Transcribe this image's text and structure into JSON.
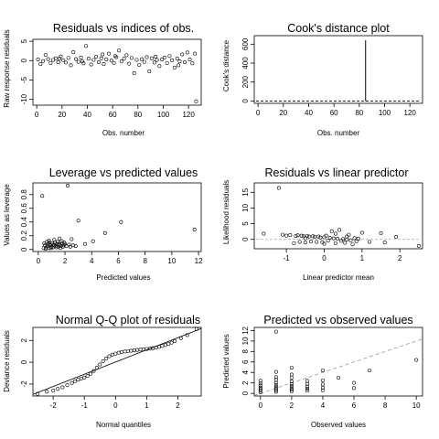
{
  "chart_data": [
    {
      "type": "scatter",
      "title": "Residuals vs indices of obs.",
      "xlabel": "Obs. number",
      "ylabel": "Raw response residuals",
      "xlim": [
        -3,
        130
      ],
      "ylim": [
        -11.5,
        5.5
      ],
      "xticks": [
        0,
        20,
        40,
        60,
        80,
        100,
        120
      ],
      "yticks": [
        -10,
        -5,
        0,
        5
      ],
      "points": [
        [
          1,
          0.3
        ],
        [
          3,
          -0.9
        ],
        [
          5,
          -0.1
        ],
        [
          7,
          1.5
        ],
        [
          9,
          0.4
        ],
        [
          11,
          -0.6
        ],
        [
          13,
          0.2
        ],
        [
          15,
          0.6
        ],
        [
          17,
          -0.4
        ],
        [
          19,
          1.1
        ],
        [
          21,
          0.1
        ],
        [
          23,
          -0.5
        ],
        [
          25,
          0.7
        ],
        [
          27,
          -1.2
        ],
        [
          29,
          2.2
        ],
        [
          31,
          0.4
        ],
        [
          33,
          -0.3
        ],
        [
          35,
          0.8
        ],
        [
          37,
          -0.7
        ],
        [
          39,
          3.8
        ],
        [
          41,
          0.5
        ],
        [
          43,
          -1.0
        ],
        [
          45,
          0.2
        ],
        [
          47,
          1.0
        ],
        [
          49,
          -0.4
        ],
        [
          51,
          0.6
        ],
        [
          53,
          -0.9
        ],
        [
          55,
          0.3
        ],
        [
          57,
          1.8
        ],
        [
          59,
          0.0
        ],
        [
          61,
          -0.6
        ],
        [
          63,
          0.9
        ],
        [
          65,
          2.6
        ],
        [
          67,
          -0.2
        ],
        [
          69,
          0.5
        ],
        [
          71,
          1.4
        ],
        [
          73,
          -0.8
        ],
        [
          75,
          0.7
        ],
        [
          77,
          -3.2
        ],
        [
          79,
          0.2
        ],
        [
          81,
          -1.1
        ],
        [
          83,
          0.4
        ],
        [
          85,
          -0.3
        ],
        [
          87,
          0.9
        ],
        [
          89,
          -2.8
        ],
        [
          91,
          0.6
        ],
        [
          93,
          -0.5
        ],
        [
          95,
          0.2
        ],
        [
          97,
          -1.4
        ],
        [
          99,
          0.3
        ],
        [
          101,
          0.8
        ],
        [
          103,
          -0.6
        ],
        [
          105,
          1.2
        ],
        [
          107,
          0.1
        ],
        [
          109,
          -1.8
        ],
        [
          111,
          0.5
        ],
        [
          113,
          -0.2
        ],
        [
          115,
          1.6
        ],
        [
          117,
          -0.4
        ],
        [
          119,
          2.1
        ],
        [
          121,
          0.3
        ],
        [
          123,
          -0.7
        ],
        [
          125,
          1.8
        ],
        [
          126,
          -10.5
        ],
        [
          18,
          0.5
        ],
        [
          62,
          1.2
        ],
        [
          36,
          -0.2
        ],
        [
          52,
          1.6
        ],
        [
          94,
          1.0
        ],
        [
          112,
          -1.2
        ]
      ]
    },
    {
      "type": "line",
      "title": "Cook's distance plot",
      "xlabel": "Obs. number",
      "ylabel": "Cook's distance",
      "xlim": [
        -3,
        130
      ],
      "ylim": [
        -25,
        690
      ],
      "xticks": [
        0,
        20,
        40,
        60,
        80,
        100,
        120
      ],
      "yticks": [
        0,
        200,
        400,
        600
      ],
      "spike": {
        "x": 85,
        "y": 640
      },
      "hline": 0
    },
    {
      "type": "scatter",
      "title": "Leverage vs predicted values",
      "xlabel": "Predicted values",
      "ylabel": "Values as leverage",
      "xlim": [
        -0.4,
        12.2
      ],
      "ylim": [
        -0.03,
        0.97
      ],
      "xticks": [
        0,
        2,
        4,
        6,
        8,
        10,
        12
      ],
      "yticks": [
        0.0,
        0.2,
        0.4,
        0.6,
        0.8
      ],
      "points": [
        [
          0.3,
          0.78
        ],
        [
          2.2,
          0.93
        ],
        [
          3.0,
          0.42
        ],
        [
          6.2,
          0.4
        ],
        [
          11.7,
          0.29
        ],
        [
          5.0,
          0.24
        ],
        [
          4.1,
          0.12
        ],
        [
          3.5,
          0.08
        ],
        [
          2.5,
          0.15
        ],
        [
          0.4,
          0.02
        ],
        [
          0.5,
          0.06
        ],
        [
          0.6,
          0.03
        ],
        [
          0.7,
          0.05
        ],
        [
          0.8,
          0.02
        ],
        [
          0.9,
          0.07
        ],
        [
          1.0,
          0.04
        ],
        [
          1.1,
          0.03
        ],
        [
          1.2,
          0.06
        ],
        [
          1.3,
          0.05
        ],
        [
          1.4,
          0.08
        ],
        [
          1.5,
          0.04
        ],
        [
          1.6,
          0.06
        ],
        [
          1.7,
          0.05
        ],
        [
          1.8,
          0.09
        ],
        [
          1.9,
          0.06
        ],
        [
          2.0,
          0.08
        ],
        [
          2.1,
          0.05
        ],
        [
          2.3,
          0.07
        ],
        [
          2.4,
          0.04
        ],
        [
          2.6,
          0.06
        ],
        [
          2.8,
          0.05
        ],
        [
          0.45,
          0.09
        ],
        [
          0.55,
          0.01
        ],
        [
          0.65,
          0.11
        ],
        [
          0.75,
          0.08
        ],
        [
          0.85,
          0.1
        ],
        [
          0.95,
          0.02
        ],
        [
          1.05,
          0.09
        ],
        [
          1.15,
          0.07
        ],
        [
          1.25,
          0.1
        ],
        [
          1.35,
          0.03
        ],
        [
          1.45,
          0.11
        ],
        [
          1.55,
          0.08
        ],
        [
          1.65,
          0.02
        ],
        [
          1.75,
          0.12
        ],
        [
          1.85,
          0.04
        ],
        [
          1.95,
          0.1
        ],
        [
          1.6,
          0.16
        ],
        [
          1.2,
          0.14
        ],
        [
          0.8,
          0.13
        ]
      ]
    },
    {
      "type": "scatter",
      "title": "Residuals vs linear predictor",
      "xlabel": "Linear predictor mean",
      "ylabel": "Likelihood residuals",
      "xlim": [
        -1.85,
        2.6
      ],
      "ylim": [
        -3,
        18
      ],
      "xticks": [
        -1,
        0,
        1,
        2
      ],
      "yticks": [
        0,
        5,
        10,
        15
      ],
      "hline": 0,
      "points": [
        [
          -1.6,
          1.8
        ],
        [
          -1.2,
          16.4
        ],
        [
          -1.1,
          1.5
        ],
        [
          -1.0,
          1.2
        ],
        [
          -0.9,
          1.4
        ],
        [
          -0.8,
          -1.2
        ],
        [
          -0.75,
          1.1
        ],
        [
          -0.7,
          1.3
        ],
        [
          -0.65,
          -0.8
        ],
        [
          -0.6,
          1.2
        ],
        [
          -0.55,
          1.0
        ],
        [
          -0.5,
          -1.0
        ],
        [
          -0.45,
          1.1
        ],
        [
          -0.4,
          0.9
        ],
        [
          -0.35,
          -0.7
        ],
        [
          -0.3,
          1.0
        ],
        [
          -0.25,
          0.8
        ],
        [
          -0.2,
          -0.8
        ],
        [
          -0.15,
          0.9
        ],
        [
          -0.1,
          0.6
        ],
        [
          -0.05,
          -0.9
        ],
        [
          0.0,
          0.7
        ],
        [
          0.05,
          1.2
        ],
        [
          0.1,
          -0.4
        ],
        [
          0.15,
          0.5
        ],
        [
          0.2,
          2.6
        ],
        [
          0.25,
          0.3
        ],
        [
          0.3,
          -1.2
        ],
        [
          0.35,
          0.2
        ],
        [
          0.4,
          3.0
        ],
        [
          0.45,
          -0.5
        ],
        [
          0.5,
          0.1
        ],
        [
          0.55,
          -1.1
        ],
        [
          0.6,
          0.0
        ],
        [
          0.65,
          1.5
        ],
        [
          0.7,
          -0.3
        ],
        [
          0.75,
          -1.6
        ],
        [
          0.8,
          0.4
        ],
        [
          0.85,
          -0.6
        ],
        [
          1.0,
          2.1
        ],
        [
          1.2,
          -0.8
        ],
        [
          1.5,
          2.0
        ],
        [
          1.6,
          -1.0
        ],
        [
          1.9,
          0.8
        ],
        [
          2.5,
          -2.1
        ],
        [
          -0.5,
          0.4
        ],
        [
          0.0,
          -1.4
        ],
        [
          0.3,
          1.8
        ],
        [
          0.6,
          0.9
        ],
        [
          0.9,
          0.2
        ]
      ]
    },
    {
      "type": "scatter",
      "title": "Normal Q-Q plot of residuals",
      "xlabel": "Normal quantiles",
      "ylabel": "Deviance residuals",
      "xlim": [
        -2.65,
        2.75
      ],
      "ylim": [
        -3.1,
        3.2
      ],
      "xticks": [
        -2,
        -1,
        0,
        1,
        2
      ],
      "yticks": [
        -2,
        0,
        2
      ],
      "refline": [
        [
          -2.65,
          -2.95
        ],
        [
          2.75,
          3.1
        ]
      ],
      "points": [
        [
          -2.5,
          -2.9
        ],
        [
          -2.2,
          -2.7
        ],
        [
          -2.0,
          -2.6
        ],
        [
          -1.85,
          -2.45
        ],
        [
          -1.7,
          -2.3
        ],
        [
          -1.55,
          -2.1
        ],
        [
          -1.4,
          -1.9
        ],
        [
          -1.3,
          -1.75
        ],
        [
          -1.2,
          -1.6
        ],
        [
          -1.1,
          -1.5
        ],
        [
          -1.0,
          -1.4
        ],
        [
          -0.9,
          -1.25
        ],
        [
          -0.8,
          -1.05
        ],
        [
          -0.7,
          -0.8
        ],
        [
          -0.6,
          -0.5
        ],
        [
          -0.5,
          -0.2
        ],
        [
          -0.4,
          0.1
        ],
        [
          -0.3,
          0.35
        ],
        [
          -0.2,
          0.55
        ],
        [
          -0.1,
          0.7
        ],
        [
          0.0,
          0.8
        ],
        [
          0.1,
          0.88
        ],
        [
          0.2,
          0.94
        ],
        [
          0.3,
          0.98
        ],
        [
          0.4,
          1.02
        ],
        [
          0.5,
          1.06
        ],
        [
          0.6,
          1.1
        ],
        [
          0.7,
          1.13
        ],
        [
          0.8,
          1.16
        ],
        [
          0.9,
          1.19
        ],
        [
          1.0,
          1.22
        ],
        [
          1.1,
          1.26
        ],
        [
          1.2,
          1.3
        ],
        [
          1.3,
          1.35
        ],
        [
          1.4,
          1.42
        ],
        [
          1.5,
          1.5
        ],
        [
          1.6,
          1.58
        ],
        [
          1.7,
          1.68
        ],
        [
          1.8,
          1.8
        ],
        [
          1.9,
          1.95
        ],
        [
          2.1,
          2.2
        ],
        [
          2.3,
          2.5
        ],
        [
          2.6,
          3.05
        ]
      ]
    },
    {
      "type": "scatter",
      "title": "Predicted vs observed values",
      "xlabel": "Observed values",
      "ylabel": "Predicted values",
      "xlim": [
        -0.4,
        10.4
      ],
      "ylim": [
        -0.5,
        12.6
      ],
      "xticks": [
        0,
        2,
        4,
        6,
        8,
        10
      ],
      "yticks": [
        0,
        2,
        4,
        6,
        8,
        10,
        12
      ],
      "refline": [
        [
          -0.4,
          -0.4
        ],
        [
          10.4,
          10.4
        ]
      ],
      "points": [
        [
          0,
          0.2
        ],
        [
          0,
          0.5
        ],
        [
          0,
          0.8
        ],
        [
          0,
          1.1
        ],
        [
          0,
          1.5
        ],
        [
          0,
          1.9
        ],
        [
          0,
          2.4
        ],
        [
          1,
          0.3
        ],
        [
          1,
          0.6
        ],
        [
          1,
          0.9
        ],
        [
          1,
          1.2
        ],
        [
          1,
          1.6
        ],
        [
          1,
          2.0
        ],
        [
          1,
          2.6
        ],
        [
          1,
          3.1
        ],
        [
          1,
          4.1
        ],
        [
          1,
          11.8
        ],
        [
          2,
          0.4
        ],
        [
          2,
          0.7
        ],
        [
          2,
          1.0
        ],
        [
          2,
          1.4
        ],
        [
          2,
          1.8
        ],
        [
          2,
          2.3
        ],
        [
          2,
          3.0
        ],
        [
          2,
          3.6
        ],
        [
          2,
          4.9
        ],
        [
          3,
          0.5
        ],
        [
          3,
          0.9
        ],
        [
          3,
          1.3
        ],
        [
          3,
          1.8
        ],
        [
          3,
          2.4
        ],
        [
          4,
          0.6
        ],
        [
          4,
          1.1
        ],
        [
          4,
          1.7
        ],
        [
          4,
          2.5
        ],
        [
          4,
          4.4
        ],
        [
          5,
          3.0
        ],
        [
          6,
          1.0
        ],
        [
          6,
          2.0
        ],
        [
          7,
          4.4
        ],
        [
          10,
          6.4
        ]
      ]
    }
  ]
}
